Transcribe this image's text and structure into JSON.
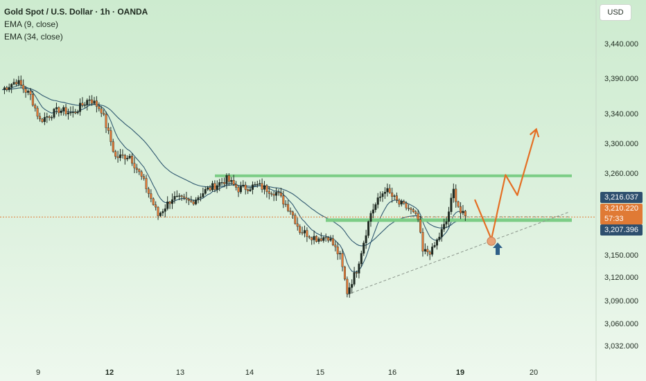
{
  "legend": {
    "title": "Gold Spot / U.S. Dollar · 1h · OANDA",
    "ema_fast": "EMA (9, close)",
    "ema_slow": "EMA (34, close)"
  },
  "currency_button": "USD",
  "price_tags": {
    "upper_ema": "3,216.037",
    "last_price": "3,210.220",
    "countdown": "57:33",
    "lower_ema": "3,207.396"
  },
  "colors": {
    "up_candle": "#1f2a22",
    "down_candle": "#e57a37",
    "ema_line": "#2f5870",
    "level_line": "#7ccd86",
    "projection": "#e46f24",
    "arrow": "#2e5f88",
    "last_price_line": "#e07a35"
  },
  "chart_data": {
    "type": "candlestick",
    "title": "Gold Spot / U.S. Dollar · 1h · OANDA",
    "y_ticks": [
      "3,440.000",
      "3,390.000",
      "3,340.000",
      "3,300.000",
      "3,260.000",
      "3,150.000",
      "3,120.000",
      "3,090.000",
      "3,060.000",
      "3,032.000"
    ],
    "x_ticks": [
      {
        "label": "9",
        "bold": false
      },
      {
        "label": "12",
        "bold": true
      },
      {
        "label": "13",
        "bold": false
      },
      {
        "label": "14",
        "bold": false
      },
      {
        "label": "15",
        "bold": false
      },
      {
        "label": "16",
        "bold": false
      },
      {
        "label": "19",
        "bold": true
      },
      {
        "label": "20",
        "bold": false
      }
    ],
    "price_path": [
      {
        "t": 0,
        "p": 3355
      },
      {
        "t": 6,
        "p": 3365
      },
      {
        "t": 12,
        "p": 3348
      },
      {
        "t": 16,
        "p": 3320
      },
      {
        "t": 24,
        "p": 3332
      },
      {
        "t": 30,
        "p": 3328
      },
      {
        "t": 37,
        "p": 3345
      },
      {
        "t": 42,
        "p": 3332
      },
      {
        "t": 48,
        "p": 3278
      },
      {
        "t": 54,
        "p": 3280
      },
      {
        "t": 60,
        "p": 3250
      },
      {
        "t": 66,
        "p": 3212
      },
      {
        "t": 72,
        "p": 3232
      },
      {
        "t": 80,
        "p": 3227
      },
      {
        "t": 86,
        "p": 3240
      },
      {
        "t": 95,
        "p": 3253
      },
      {
        "t": 100,
        "p": 3242
      },
      {
        "t": 108,
        "p": 3246
      },
      {
        "t": 116,
        "p": 3238
      },
      {
        "t": 122,
        "p": 3218
      },
      {
        "t": 126,
        "p": 3195
      },
      {
        "t": 133,
        "p": 3186
      },
      {
        "t": 138,
        "p": 3188
      },
      {
        "t": 143,
        "p": 3165
      },
      {
        "t": 146,
        "p": 3125
      },
      {
        "t": 150,
        "p": 3150
      },
      {
        "t": 156,
        "p": 3215
      },
      {
        "t": 162,
        "p": 3242
      },
      {
        "t": 168,
        "p": 3225
      },
      {
        "t": 172,
        "p": 3220
      },
      {
        "t": 176,
        "p": 3207
      },
      {
        "t": 178,
        "p": 3170
      },
      {
        "t": 182,
        "p": 3172
      },
      {
        "t": 188,
        "p": 3205
      },
      {
        "t": 191,
        "p": 3240
      },
      {
        "t": 194,
        "p": 3215
      },
      {
        "t": 196,
        "p": 3210
      }
    ],
    "ema_9": "EMA (9, close)",
    "ema_34": "EMA (34, close)",
    "resistance_level": 3257,
    "support_level": 3207,
    "last_price": 3210.22,
    "trendline": [
      {
        "t": 146,
        "p": 3122
      },
      {
        "t": 240,
        "p": 3216
      }
    ],
    "projection_path": [
      {
        "t": 200,
        "p": 3230
      },
      {
        "t": 207,
        "p": 3185
      },
      {
        "t": 213,
        "p": 3258
      },
      {
        "t": 218,
        "p": 3235
      },
      {
        "t": 226,
        "p": 3310
      }
    ],
    "projection_note": "Orange arrow path: dip to support then rally above resistance",
    "grid": false
  }
}
